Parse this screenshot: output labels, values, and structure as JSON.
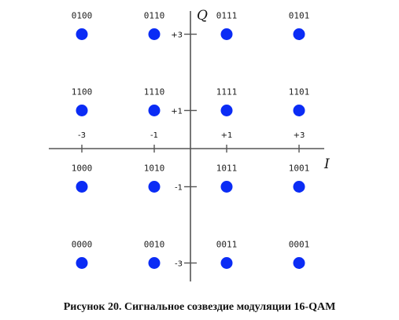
{
  "diagram": {
    "axes": {
      "i_label": "I",
      "q_label": "Q",
      "i_ticks": [
        {
          "value": -3,
          "label": "-3"
        },
        {
          "value": -1,
          "label": "-1"
        },
        {
          "value": 1,
          "label": "+1"
        },
        {
          "value": 3,
          "label": "+3"
        }
      ],
      "q_ticks": [
        {
          "value": 3,
          "label": "+3"
        },
        {
          "value": 1,
          "label": "+1"
        },
        {
          "value": -1,
          "label": "-1"
        },
        {
          "value": -3,
          "label": "-3"
        }
      ]
    },
    "points": [
      {
        "i": -3,
        "q": 3,
        "code": "0100"
      },
      {
        "i": -1,
        "q": 3,
        "code": "0110"
      },
      {
        "i": 1,
        "q": 3,
        "code": "0111"
      },
      {
        "i": 3,
        "q": 3,
        "code": "0101"
      },
      {
        "i": -3,
        "q": 1,
        "code": "1100"
      },
      {
        "i": -1,
        "q": 1,
        "code": "1110"
      },
      {
        "i": 1,
        "q": 1,
        "code": "1111"
      },
      {
        "i": 3,
        "q": 1,
        "code": "1101"
      },
      {
        "i": -3,
        "q": -1,
        "code": "1000"
      },
      {
        "i": -1,
        "q": -1,
        "code": "1010"
      },
      {
        "i": 1,
        "q": -1,
        "code": "1011"
      },
      {
        "i": 3,
        "q": -1,
        "code": "1001"
      },
      {
        "i": -3,
        "q": -3,
        "code": "0000"
      },
      {
        "i": -1,
        "q": -3,
        "code": "0010"
      },
      {
        "i": 1,
        "q": -3,
        "code": "0011"
      },
      {
        "i": 3,
        "q": -3,
        "code": "0001"
      }
    ],
    "point_color": "#0b2cf5",
    "axis_color": "#555555"
  },
  "caption": "Рисунок 20. Сигнальное созвездие модуляции 16-QAM"
}
